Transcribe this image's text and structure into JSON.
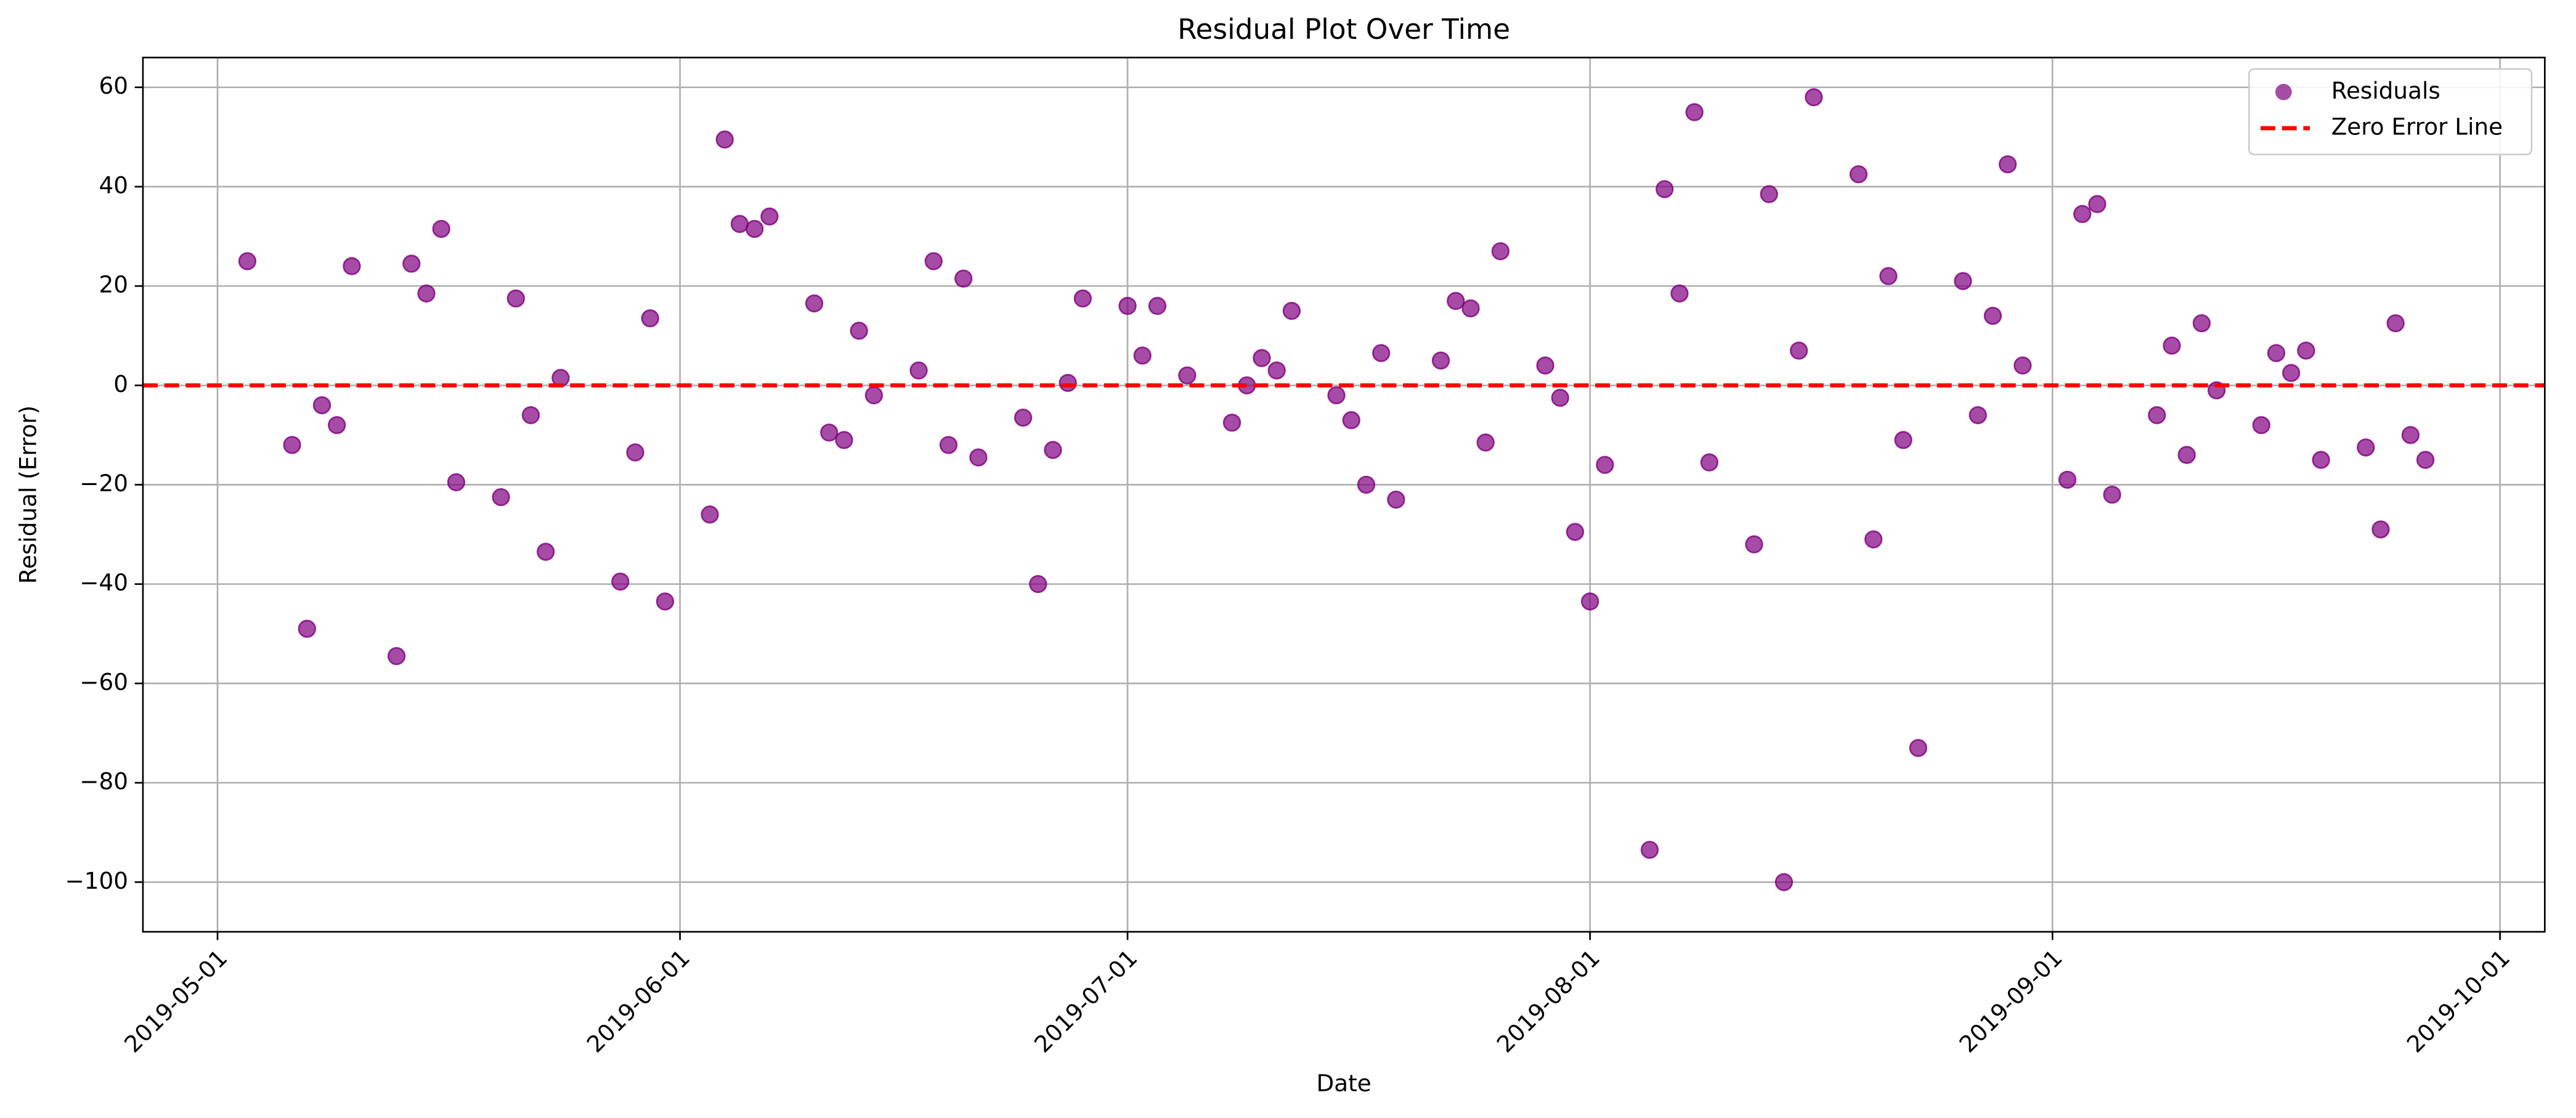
{
  "chart_data": {
    "type": "scatter",
    "title": "Residual Plot Over Time",
    "xlabel": "Date",
    "ylabel": "Residual (Error)",
    "grid": true,
    "legend": "upper right",
    "series": [
      {
        "name": "Residuals",
        "color": "#800080",
        "x": [
          "2019-05-03",
          "2019-05-06",
          "2019-05-07",
          "2019-05-08",
          "2019-05-09",
          "2019-05-10",
          "2019-05-13",
          "2019-05-14",
          "2019-05-15",
          "2019-05-16",
          "2019-05-17",
          "2019-05-20",
          "2019-05-21",
          "2019-05-22",
          "2019-05-23",
          "2019-05-24",
          "2019-05-28",
          "2019-05-29",
          "2019-05-30",
          "2019-05-31",
          "2019-06-03",
          "2019-06-04",
          "2019-06-05",
          "2019-06-06",
          "2019-06-07",
          "2019-06-10",
          "2019-06-11",
          "2019-06-12",
          "2019-06-13",
          "2019-06-14",
          "2019-06-17",
          "2019-06-18",
          "2019-06-19",
          "2019-06-20",
          "2019-06-21",
          "2019-06-24",
          "2019-06-25",
          "2019-06-26",
          "2019-06-27",
          "2019-06-28",
          "2019-07-01",
          "2019-07-02",
          "2019-07-03",
          "2019-07-05",
          "2019-07-08",
          "2019-07-09",
          "2019-07-10",
          "2019-07-11",
          "2019-07-12",
          "2019-07-15",
          "2019-07-16",
          "2019-07-17",
          "2019-07-18",
          "2019-07-19",
          "2019-07-22",
          "2019-07-23",
          "2019-07-24",
          "2019-07-25",
          "2019-07-26",
          "2019-07-29",
          "2019-07-30",
          "2019-07-31",
          "2019-08-01",
          "2019-08-02",
          "2019-08-05",
          "2019-08-06",
          "2019-08-07",
          "2019-08-08",
          "2019-08-09",
          "2019-08-12",
          "2019-08-13",
          "2019-08-14",
          "2019-08-15",
          "2019-08-16",
          "2019-08-19",
          "2019-08-20",
          "2019-08-21",
          "2019-08-22",
          "2019-08-23",
          "2019-08-26",
          "2019-08-27",
          "2019-08-28",
          "2019-08-29",
          "2019-08-30",
          "2019-09-02",
          "2019-09-03",
          "2019-09-04",
          "2019-09-05",
          "2019-09-08",
          "2019-09-09",
          "2019-09-10",
          "2019-09-11",
          "2019-09-12",
          "2019-09-15",
          "2019-09-16",
          "2019-09-17",
          "2019-09-18",
          "2019-09-19",
          "2019-09-22",
          "2019-09-23",
          "2019-09-24",
          "2019-09-25",
          "2019-09-26"
        ],
        "values": [
          25,
          -12,
          -49,
          -4,
          -8,
          24,
          -54.5,
          24.5,
          18.5,
          31.5,
          -19.5,
          -22.5,
          17.5,
          -6,
          -33.5,
          1.5,
          -39.5,
          -13.5,
          13.5,
          -43.5,
          -26,
          49.5,
          32.5,
          31.5,
          34,
          16.5,
          -9.5,
          -11,
          11,
          -2,
          3,
          25,
          -12,
          21.5,
          -14.5,
          -6.5,
          -40,
          -13,
          0.5,
          17.5,
          16,
          6,
          16,
          2,
          -7.5,
          0,
          5.5,
          3,
          15,
          -2,
          -7,
          -20,
          6.5,
          -23,
          5,
          17,
          15.5,
          -11.5,
          27,
          4,
          -2.5,
          -29.5,
          -43.5,
          -16,
          -93.5,
          39.5,
          18.5,
          55,
          -15.5,
          -32,
          38.5,
          -100,
          7,
          58,
          42.5,
          -31,
          22,
          -11,
          -73,
          21,
          -6,
          14,
          44.5,
          4,
          -19,
          34.5,
          36.5,
          -22,
          -6,
          8,
          -14,
          12.5,
          -1,
          -8,
          6.5,
          2.5,
          7,
          -15,
          -12.5,
          -29,
          12.5,
          -10,
          -15
        ]
      }
    ],
    "hline": {
      "name": "Zero Error Line",
      "value": 0,
      "color": "#ff0000"
    },
    "xlim": [
      "2019-04-26",
      "2019-10-04"
    ],
    "xticks": [
      "2019-05-01",
      "2019-06-01",
      "2019-07-01",
      "2019-08-01",
      "2019-09-01",
      "2019-10-01"
    ],
    "ylim": [
      -110,
      66
    ],
    "yticks": [
      {
        "value": -100,
        "label": "−100"
      },
      {
        "value": -80,
        "label": "−80"
      },
      {
        "value": -60,
        "label": "−60"
      },
      {
        "value": -40,
        "label": "−40"
      },
      {
        "value": -20,
        "label": "−20"
      },
      0,
      20,
      40,
      60
    ]
  }
}
